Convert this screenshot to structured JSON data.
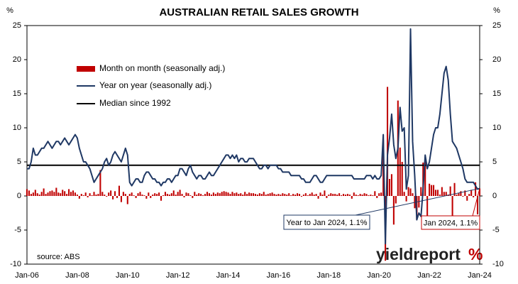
{
  "chart_data": {
    "type": "bar_line",
    "title": "AUSTRALIAN RETAIL SALES GROWTH",
    "ylabel": "%",
    "y2label": "%",
    "source": "source: ABS",
    "logo": "yieldreport",
    "logo_mark": "%",
    "ylim": [
      -10,
      25
    ],
    "yticks": [
      -10,
      -5,
      0,
      5,
      10,
      15,
      20,
      25
    ],
    "y2lim": [
      -10,
      25
    ],
    "y2ticks": [
      -10,
      -5,
      0,
      5,
      10,
      15,
      20,
      25
    ],
    "legend": "upper left",
    "categories": [
      "Jan-06",
      null,
      null,
      null,
      null,
      null,
      null,
      null,
      null,
      null,
      null,
      null,
      null,
      null,
      null,
      null,
      null,
      null,
      null,
      null,
      null,
      null,
      null,
      null,
      "Jan-08",
      null,
      null,
      null,
      null,
      null,
      null,
      null,
      null,
      null,
      null,
      null,
      null,
      null,
      null,
      null,
      null,
      null,
      null,
      null,
      null,
      null,
      null,
      null,
      "Jan-10",
      null,
      null,
      null,
      null,
      null,
      null,
      null,
      null,
      null,
      null,
      null,
      null,
      null,
      null,
      null,
      null,
      null,
      null,
      null,
      null,
      null,
      null,
      null,
      "Jan-12",
      null,
      null,
      null,
      null,
      null,
      null,
      null,
      null,
      null,
      null,
      null,
      null,
      null,
      null,
      null,
      null,
      null,
      null,
      null,
      null,
      null,
      null,
      null,
      "Jan-14",
      null,
      null,
      null,
      null,
      null,
      null,
      null,
      null,
      null,
      null,
      null,
      null,
      null,
      null,
      null,
      null,
      null,
      null,
      null,
      null,
      null,
      null,
      null,
      "Jan-16",
      null,
      null,
      null,
      null,
      null,
      null,
      null,
      null,
      null,
      null,
      null,
      null,
      null,
      null,
      null,
      null,
      null,
      null,
      null,
      null,
      null,
      null,
      null,
      "Jan-18",
      null,
      null,
      null,
      null,
      null,
      null,
      null,
      null,
      null,
      null,
      null,
      null,
      null,
      null,
      null,
      null,
      null,
      null,
      null,
      null,
      null,
      null,
      null,
      "Jan-20",
      null,
      null,
      null,
      null,
      null,
      null,
      null,
      null,
      null,
      null,
      null,
      null,
      null,
      null,
      null,
      null,
      null,
      null,
      null,
      null,
      null,
      null,
      null,
      "Jan-22",
      null,
      null,
      null,
      null,
      null,
      null,
      null,
      null,
      null,
      null,
      null,
      null,
      null,
      null,
      null,
      null,
      null,
      null,
      null,
      null,
      null,
      null,
      null,
      "Jan-24"
    ],
    "series": [
      {
        "name": "Month on month (seasonally adj.)",
        "kind": "bar",
        "color": "#c00000",
        "values": [
          1.0,
          0.8,
          0.3,
          0.5,
          0.9,
          0.4,
          0.2,
          0.6,
          1.1,
          0.3,
          0.5,
          0.7,
          0.8,
          0.6,
          1.2,
          0.5,
          0.4,
          0.9,
          0.7,
          0.3,
          1.0,
          0.6,
          0.8,
          0.5,
          0.2,
          -0.4,
          0.3,
          0.1,
          0.5,
          -0.2,
          0.4,
          0.1,
          0.6,
          0.2,
          0.3,
          3.8,
          0.6,
          0.2,
          -0.1,
          0.5,
          0.8,
          -0.5,
          0.7,
          -0.3,
          1.5,
          -0.9,
          0.6,
          0.3,
          -1.2,
          0.3,
          0.5,
          0.1,
          -0.3,
          0.4,
          0.6,
          0.2,
          0.1,
          -0.4,
          0.5,
          -0.3,
          0.2,
          0.4,
          0.3,
          0.5,
          -0.7,
          0.1,
          0.6,
          0.3,
          0.2,
          0.4,
          0.8,
          0.2,
          0.6,
          0.9,
          0.3,
          -0.2,
          0.5,
          0.4,
          0.1,
          -0.3,
          0.6,
          0.2,
          0.4,
          0.3,
          0.1,
          0.3,
          0.6,
          0.4,
          0.2,
          0.5,
          0.3,
          0.5,
          0.4,
          0.6,
          0.7,
          0.6,
          0.5,
          0.3,
          0.6,
          0.4,
          0.5,
          0.3,
          0.4,
          0.2,
          0.6,
          0.3,
          0.5,
          0.4,
          0.4,
          0.3,
          0.2,
          0.4,
          0.3,
          0.6,
          0.2,
          0.3,
          0.4,
          0.5,
          0.3,
          0.2,
          0.3,
          0.2,
          0.4,
          0.3,
          0.2,
          0.4,
          0.1,
          0.3,
          0.2,
          0.4,
          0.3,
          -0.1,
          0.2,
          0.4,
          0.1,
          0.3,
          0.5,
          0.2,
          0.3,
          -0.4,
          0.5,
          0.2,
          0.8,
          -0.3,
          0.2,
          0.4,
          0.3,
          0.3,
          0.2,
          0.4,
          0.1,
          0.3,
          0.2,
          0.3,
          0.2,
          -0.4,
          0.5,
          0.2,
          0.1,
          0.3,
          0.2,
          0.4,
          0.3,
          0.1,
          0.2,
          0.1,
          0.7,
          -0.3,
          0.4,
          0.5,
          8.2,
          -9.5,
          16.0,
          2.5,
          3.2,
          -4.2,
          -1.1,
          14.0,
          7.1,
          5.0,
          0.6,
          -0.8,
          1.3,
          1.1,
          0.4,
          -1.8,
          -3.5,
          -1.7,
          1.3,
          4.9,
          5.0,
          -4.4,
          1.8,
          1.6,
          1.6,
          0.9,
          0.9,
          0.2,
          1.3,
          0.6,
          0.6,
          0.2,
          1.4,
          -3.9,
          1.9,
          0.2,
          0.4,
          0.7,
          -0.1,
          0.8,
          -0.7,
          0.3,
          0.9,
          -0.2,
          2.0,
          -2.7,
          1.1
        ]
      },
      {
        "name": "Year on year (seasonally adj.)",
        "kind": "line",
        "color": "#1f3864",
        "values": [
          4,
          4,
          5,
          7,
          6,
          6,
          6.5,
          7,
          7,
          7.5,
          8,
          7.5,
          7,
          7.5,
          8,
          8,
          7.5,
          8,
          8.5,
          8,
          7.5,
          8,
          8.5,
          9,
          8.5,
          7,
          6,
          5,
          5,
          4.5,
          4,
          3,
          2,
          2.5,
          3,
          3.5,
          4,
          5,
          5.5,
          4.5,
          5,
          6,
          6.5,
          6,
          5.5,
          5,
          6,
          7,
          6,
          2,
          1.5,
          2,
          2.5,
          2.5,
          2,
          2,
          3,
          3.5,
          3.5,
          3,
          2.5,
          2.5,
          2,
          2,
          1.5,
          2,
          2,
          2.5,
          2.5,
          2,
          2.5,
          3,
          3,
          4,
          4,
          3.5,
          3,
          4,
          4.5,
          3.5,
          3,
          2.5,
          3,
          3,
          2.5,
          2.5,
          3,
          3.5,
          3,
          3,
          3.5,
          4,
          4.5,
          5,
          5.5,
          6,
          6,
          5.5,
          6,
          5.5,
          6,
          5,
          5.5,
          5.5,
          5,
          5,
          5.5,
          5.5,
          5.5,
          5,
          4.5,
          4,
          4,
          4.5,
          4.5,
          4,
          4.5,
          4.5,
          4.5,
          4.5,
          4,
          4,
          3.5,
          3.5,
          3.5,
          3.5,
          3,
          3,
          3,
          3,
          3,
          2.5,
          2.5,
          2,
          2,
          2,
          2.5,
          3,
          3,
          2.5,
          2,
          2,
          2.5,
          3,
          3,
          3,
          3,
          3,
          3,
          3,
          3,
          3,
          3,
          3,
          3,
          3,
          2.5,
          2.5,
          2.5,
          2.5,
          2.5,
          2.5,
          3,
          3,
          3,
          2.5,
          3,
          2.5,
          2.5,
          3,
          9,
          -7,
          6,
          8.5,
          12,
          7.5,
          5.5,
          7,
          13,
          9.5,
          10,
          1,
          3,
          24.5,
          8,
          3,
          -3.5,
          -2.5,
          -3,
          1,
          6,
          4,
          5,
          7,
          9,
          10,
          10,
          12,
          15,
          18,
          19,
          17,
          12,
          8,
          7.5,
          7,
          6,
          5,
          4,
          2.5,
          2,
          2,
          2,
          2,
          1.5,
          1,
          1.1
        ]
      }
    ],
    "median": {
      "name": "Median since 1992",
      "value": 4.5,
      "color": "#000000"
    },
    "annotations": [
      {
        "text": "Year to Jan 2024, 1.1%",
        "series": 1,
        "color": "#1f3864"
      },
      {
        "text": "Jan 2024, 1.1%",
        "series": 0,
        "color": "#c00000"
      }
    ]
  }
}
